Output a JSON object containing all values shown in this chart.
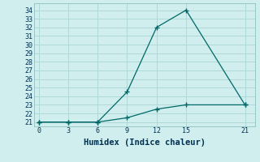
{
  "xlabel": "Humidex (Indice chaleur)",
  "background_color": "#d0eeee",
  "grid_color": "#b0d8d8",
  "line_color": "#006868",
  "line1_x": [
    0,
    3,
    6,
    9,
    12,
    15,
    21
  ],
  "line1_y": [
    21,
    21,
    21,
    24.5,
    32,
    34,
    23
  ],
  "line2_x": [
    0,
    3,
    6,
    9,
    12,
    15,
    21
  ],
  "line2_y": [
    21,
    21,
    21,
    21.5,
    22.5,
    23,
    23
  ],
  "xlim": [
    -0.5,
    22
  ],
  "ylim": [
    20.5,
    34.8
  ],
  "xticks": [
    0,
    3,
    6,
    9,
    12,
    15,
    21
  ],
  "yticks": [
    21,
    22,
    23,
    24,
    25,
    26,
    27,
    28,
    29,
    30,
    31,
    32,
    33,
    34
  ],
  "marker": "+"
}
